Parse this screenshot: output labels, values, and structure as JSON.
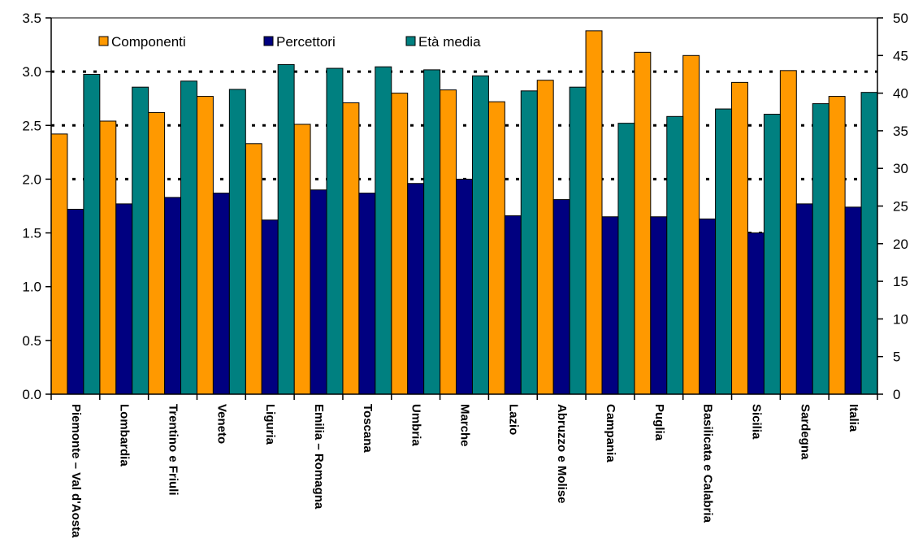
{
  "chart_data": {
    "type": "bar",
    "categories": [
      "Piemonte – Val d'Aosta",
      "Lombardia",
      "Trentino e Friuli",
      "Veneto",
      "Liguria",
      "Emilia – Romagna",
      "Toscana",
      "Umbria",
      "Marche",
      "Lazio",
      "Abruzzo e Molise",
      "Campania",
      "Puglia",
      "Basilicata e Calabria",
      "Sicilia",
      "Sardegna",
      "Italia"
    ],
    "series": [
      {
        "name": "Componenti",
        "axis": "left",
        "color": "#FF9900",
        "values": [
          2.42,
          2.54,
          2.62,
          2.77,
          2.33,
          2.51,
          2.71,
          2.8,
          2.83,
          2.72,
          2.92,
          3.38,
          3.18,
          3.15,
          2.9,
          3.01,
          2.77
        ]
      },
      {
        "name": "Percettori",
        "axis": "left",
        "color": "#000080",
        "values": [
          1.72,
          1.77,
          1.83,
          1.87,
          1.62,
          1.9,
          1.87,
          1.96,
          2.0,
          1.66,
          1.81,
          1.65,
          1.65,
          1.63,
          1.5,
          1.77,
          1.74
        ]
      },
      {
        "name": "Età media",
        "axis": "right",
        "color": "#008080",
        "values": [
          42.5,
          40.8,
          41.6,
          40.5,
          43.8,
          43.3,
          43.5,
          43.1,
          42.3,
          40.3,
          40.8,
          36.0,
          36.9,
          37.9,
          37.2,
          38.6,
          40.1
        ]
      }
    ],
    "yticks_left": [
      "0.0",
      "0.5",
      "1.0",
      "1.5",
      "2.0",
      "2.5",
      "3.0",
      "3.5"
    ],
    "yticks_right": [
      "0",
      "5",
      "10",
      "15",
      "20",
      "25",
      "30",
      "35",
      "40",
      "45",
      "50"
    ],
    "ylim_left": [
      0,
      3.5
    ],
    "ylim_right": [
      0,
      50
    ],
    "title": "",
    "xlabel": "",
    "ylabel": "",
    "legend_position": "top-left",
    "grid": "horizontal dotted"
  }
}
